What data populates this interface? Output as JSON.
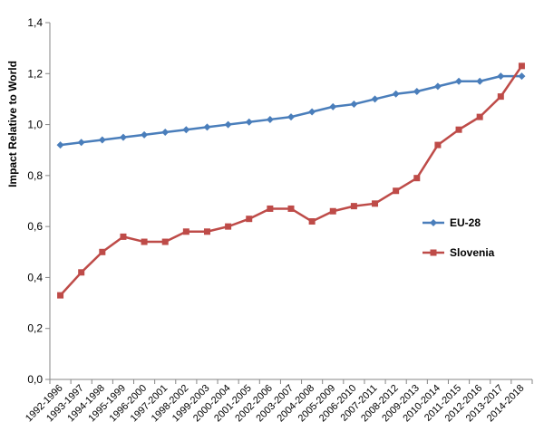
{
  "chart_data": {
    "type": "line",
    "title": "",
    "xlabel": "",
    "ylabel": "Impact Relative to World",
    "ylim": [
      0,
      1.4
    ],
    "y_ticks": [
      "0,0",
      "0,2",
      "0,4",
      "0,6",
      "0,8",
      "1,0",
      "1,2",
      "1,4"
    ],
    "grid": false,
    "legend_position": "right",
    "categories": [
      "1992-1996",
      "1993-1997",
      "1994-1998",
      "1995-1999",
      "1996-2000",
      "1997-2001",
      "1998-2002",
      "1999-2003",
      "2000-2004",
      "2001-2005",
      "2002-2006",
      "2003-2007",
      "2004-2008",
      "2005-2009",
      "2006-2010",
      "2007-2011",
      "2008-2012",
      "2009-2013",
      "2010-2014",
      "2011-2015",
      "2012-2016",
      "2013-2017",
      "2014-2018"
    ],
    "series": [
      {
        "name": "EU-28",
        "color": "#4a7ebb",
        "marker": "diamond",
        "values": [
          0.92,
          0.93,
          0.94,
          0.95,
          0.96,
          0.97,
          0.98,
          0.99,
          1.0,
          1.01,
          1.02,
          1.03,
          1.05,
          1.07,
          1.08,
          1.1,
          1.12,
          1.13,
          1.15,
          1.17,
          1.17,
          1.19,
          1.19
        ]
      },
      {
        "name": "Slovenia",
        "color": "#be4b48",
        "marker": "square",
        "values": [
          0.33,
          0.42,
          0.5,
          0.56,
          0.54,
          0.54,
          0.58,
          0.58,
          0.6,
          0.63,
          0.67,
          0.67,
          0.62,
          0.66,
          0.68,
          0.69,
          0.74,
          0.79,
          0.92,
          0.98,
          1.03,
          1.11,
          1.23
        ]
      }
    ]
  }
}
